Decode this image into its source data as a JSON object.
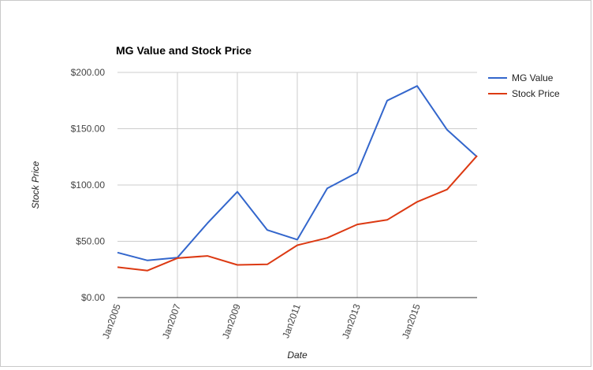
{
  "chart_data": {
    "type": "line",
    "title": "MG Value and Stock Price",
    "xlabel": "Date",
    "ylabel": "Stock Price",
    "x": [
      2005,
      2006,
      2007,
      2008,
      2009,
      2010,
      2011,
      2012,
      2013,
      2014,
      2015,
      2016,
      2017
    ],
    "x_tick_values": [
      2005,
      2007,
      2009,
      2011,
      2013,
      2015
    ],
    "x_tick_labels": [
      "Jan2005",
      "Jan2007",
      "Jan2009",
      "Jan2011",
      "Jan2013",
      "Jan2015"
    ],
    "xlim": [
      2005,
      2017
    ],
    "ylim": [
      0,
      200
    ],
    "y_tick_values": [
      0,
      50,
      100,
      150,
      200
    ],
    "y_tick_labels": [
      "$0.00",
      "$50.00",
      "$100.00",
      "$150.00",
      "$200.00"
    ],
    "grid": true,
    "legend_position": "right",
    "series": [
      {
        "name": "MG Value",
        "color": "#3366cc",
        "values": [
          40,
          33,
          35.5,
          66,
          94,
          60,
          51.5,
          97,
          111,
          175,
          188,
          149,
          125
        ]
      },
      {
        "name": "Stock Price",
        "color": "#dc3912",
        "values": [
          27,
          24,
          35,
          37,
          29,
          29.5,
          46.5,
          53,
          65,
          69,
          85,
          96,
          126
        ]
      }
    ]
  }
}
